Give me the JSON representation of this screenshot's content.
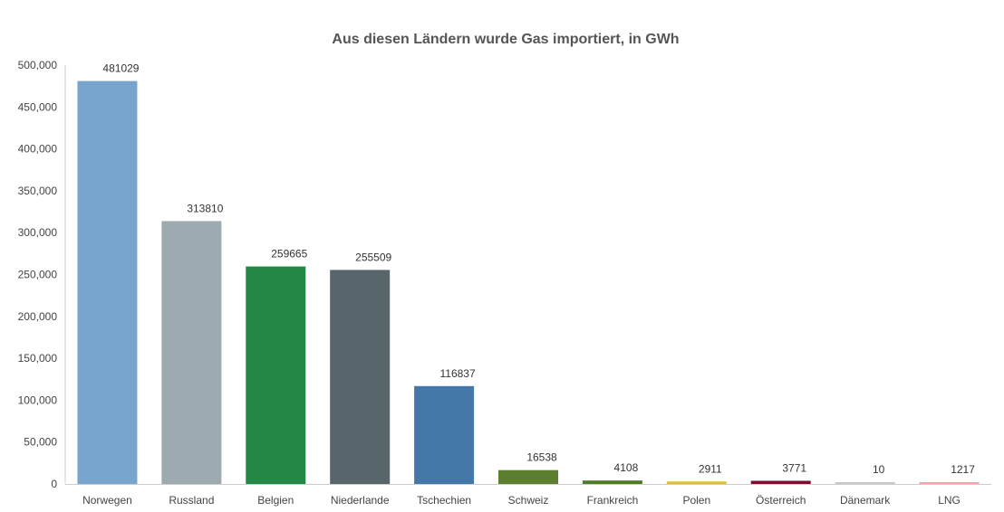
{
  "chart_data": {
    "type": "bar",
    "title": "Aus diesen Ländern wurde Gas importiert, in GWh",
    "xlabel": "",
    "ylabel": "",
    "ylim": [
      0,
      500000
    ],
    "yticks": [
      "0",
      "50,000",
      "100,000",
      "150,000",
      "200,000",
      "250,000",
      "300,000",
      "350,000",
      "400,000",
      "450,000",
      "500,000"
    ],
    "grid": false,
    "legend": "none",
    "categories": [
      "Norwegen",
      "Russland",
      "Belgien",
      "Niederlande",
      "Tschechien",
      "Schweiz",
      "Frankreich",
      "Polen",
      "Österreich",
      "Dänemark",
      "LNG"
    ],
    "values": [
      481029,
      313810,
      259665,
      255509,
      116837,
      16538,
      4108,
      2911,
      3771,
      10,
      1217
    ],
    "labels": [
      "481029",
      "313810",
      "259665",
      "255509",
      "116837",
      "16538",
      "4108",
      "2911",
      "3771",
      "10",
      "1217"
    ],
    "colors": [
      "#78a5ce",
      "#9dabb1",
      "#258745",
      "#58656b",
      "#4378a9",
      "#5b7f2e",
      "#4f7a2a",
      "#e2bd3b",
      "#7e0e2e",
      "#c8c8c8",
      "#f4a6a6"
    ]
  }
}
